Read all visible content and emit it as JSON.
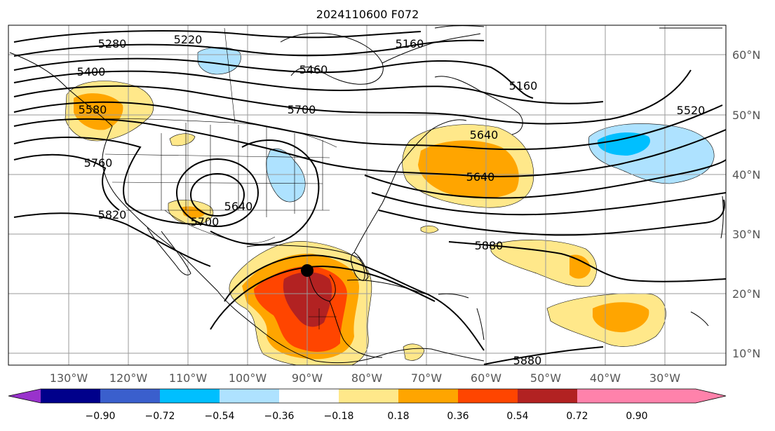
{
  "title": "2024110600 F072",
  "lon_ticks": [
    "130°W",
    "120°W",
    "110°W",
    "100°W",
    "90°W",
    "80°W",
    "70°W",
    "60°W",
    "50°W",
    "40°W",
    "30°W"
  ],
  "lat_ticks": [
    "60°N",
    "50°N",
    "40°N",
    "30°N",
    "20°N",
    "10°N"
  ],
  "colorbar": {
    "labels": [
      "−0.90",
      "−0.72",
      "−0.54",
      "−0.36",
      "−0.18",
      "0.18",
      "0.36",
      "0.54",
      "0.72",
      "0.90"
    ],
    "colors": [
      "#9932cc",
      "#00008b",
      "#3a5fcd",
      "#00bfff",
      "#aee2ff",
      "#ffffff",
      "#ffe88a",
      "#ffa500",
      "#ff4500",
      "#b22222",
      "#ff82ab"
    ]
  },
  "contour_labels": [
    "5280",
    "5220",
    "5160",
    "5400",
    "5460",
    "5160",
    "5580",
    "5700",
    "5520",
    "5640",
    "5760",
    "5640",
    "5700",
    "5640",
    "5820",
    "5880",
    "5880"
  ],
  "marker": "storm-center"
}
